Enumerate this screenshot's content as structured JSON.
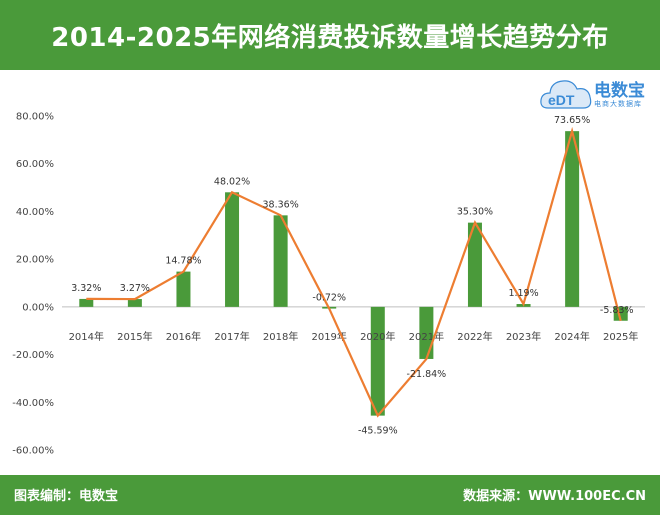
{
  "header": {
    "title": "2014-2025年网络消费投诉数量增长趋势分布"
  },
  "logo": {
    "brand": "电数宝",
    "sub": "电商大数据库",
    "mark": "eDT"
  },
  "footer": {
    "compiler": "图表编制：电数宝",
    "source": "数据来源：WWW.100EC.CN"
  },
  "colors": {
    "bar": "#4a9a3a",
    "line": "#ed7d31",
    "header": "#4a9a3a",
    "logo": "#3b8bd6"
  },
  "chart_data": {
    "type": "bar",
    "categories": [
      "2014年",
      "2015年",
      "2016年",
      "2017年",
      "2018年",
      "2019年",
      "2020年",
      "2021年",
      "2022年",
      "2023年",
      "2024年",
      "2025年"
    ],
    "values": [
      3.32,
      3.27,
      14.78,
      48.02,
      38.36,
      -0.72,
      -45.59,
      -21.84,
      35.3,
      1.19,
      73.65,
      -5.83
    ],
    "data_labels": [
      "3.32%",
      "3.27%",
      "14.78%",
      "48.02%",
      "38.36%",
      "-0.72%",
      "-45.59%",
      "-21.84%",
      "35.30%",
      "1.19%",
      "73.65%",
      "-5.83%"
    ],
    "overlay": "line",
    "ylim": [
      -60,
      80
    ],
    "yticks": [
      80,
      60,
      40,
      20,
      0,
      -20,
      -40,
      -60
    ],
    "ytick_labels": [
      "80.00%",
      "60.00%",
      "40.00%",
      "20.00%",
      "0.00%",
      "-20.00%",
      "-40.00%",
      "-60.00%"
    ],
    "grid": false,
    "legend": "none"
  }
}
